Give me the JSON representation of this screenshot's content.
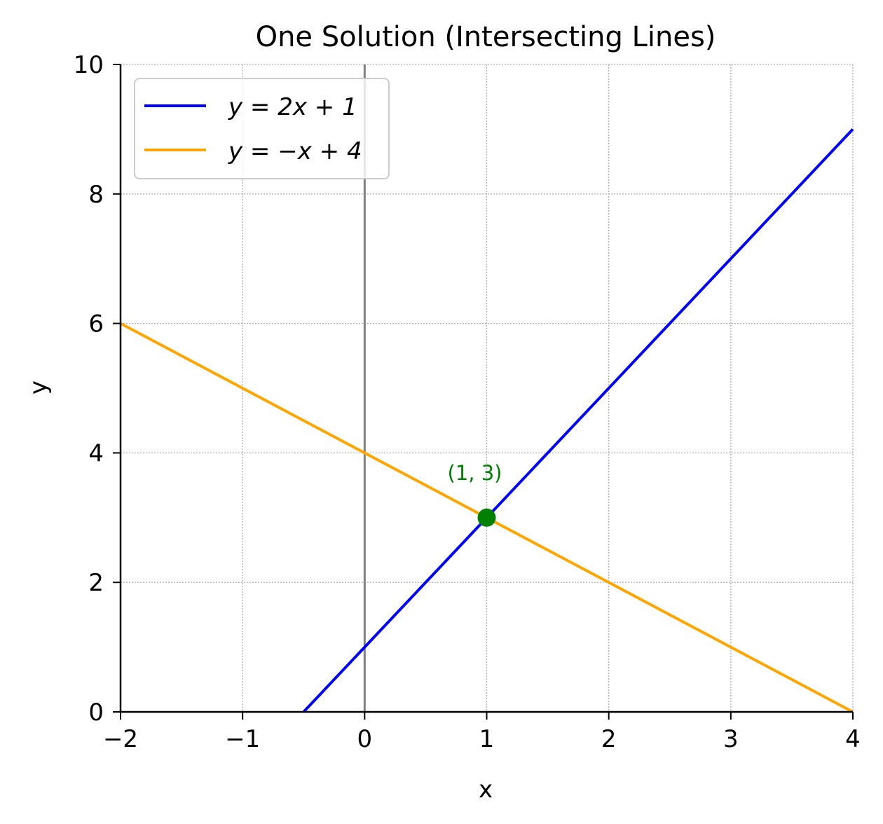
{
  "chart_data": {
    "type": "line",
    "title": "One Solution (Intersecting Lines)",
    "xlabel": "x",
    "ylabel": "y",
    "xlim": [
      -2,
      4
    ],
    "ylim": [
      0,
      10
    ],
    "x_ticks": [
      -2,
      -1,
      0,
      1,
      2,
      3,
      4
    ],
    "x_tick_labels": [
      "−2",
      "−1",
      "0",
      "1",
      "2",
      "3",
      "4"
    ],
    "y_ticks": [
      0,
      2,
      4,
      6,
      8,
      10
    ],
    "y_tick_labels": [
      "0",
      "2",
      "4",
      "6",
      "8",
      "10"
    ],
    "grid": true,
    "vertical_reference_line": {
      "x": 0,
      "color": "#808080"
    },
    "legend": {
      "placement": "top-left"
    },
    "series": [
      {
        "name": "y = 2x + 1",
        "color": "#0000ff",
        "x": [
          -0.5,
          4
        ],
        "y": [
          0,
          9
        ]
      },
      {
        "name": "y = −x + 4",
        "color": "#ffa500",
        "x": [
          -2,
          4
        ],
        "y": [
          6,
          0
        ]
      }
    ],
    "points": [
      {
        "x": 1,
        "y": 3,
        "label": "(1, 3)",
        "color": "#008000"
      }
    ]
  }
}
